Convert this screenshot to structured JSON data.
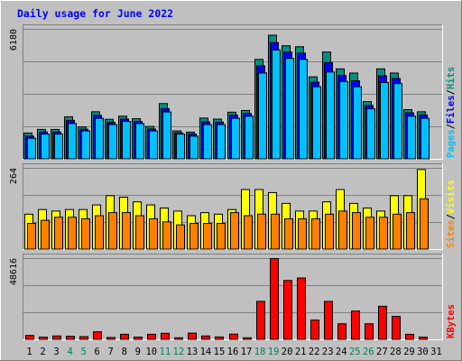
{
  "chart_data": {
    "type": "bar",
    "title": "Daily usage for June 2022",
    "categories": [
      "1",
      "2",
      "3",
      "4",
      "5",
      "6",
      "7",
      "8",
      "9",
      "10",
      "11",
      "12",
      "13",
      "14",
      "15",
      "16",
      "17",
      "18",
      "19",
      "20",
      "21",
      "22",
      "23",
      "24",
      "25",
      "26",
      "27",
      "28",
      "29",
      "30",
      "31"
    ],
    "weekend_days": [
      "4",
      "5",
      "11",
      "12",
      "18",
      "19",
      "25",
      "26"
    ],
    "panels": [
      {
        "name": "hits-files-pages",
        "ymax": 6180,
        "ymax_label": "6180",
        "side_label": [
          "Pages",
          "/",
          "Files",
          "/",
          "Hits"
        ],
        "side_label_colors": [
          "#00c0ff",
          "#000000",
          "#0000ff",
          "#000000",
          "#009080"
        ],
        "series": [
          {
            "name": "Hits",
            "color": "#009080",
            "values": [
              1250,
              1420,
              1420,
              2020,
              1540,
              2260,
              1900,
              2050,
              1930,
              1560,
              2650,
              1350,
              1290,
              1960,
              1910,
              2240,
              2320,
              4750,
              5900,
              5400,
              5350,
              3920,
              5100,
              4300,
              4100,
              2740,
              4300,
              4100,
              2360,
              2260,
              0
            ]
          },
          {
            "name": "Files",
            "color": "#0000ff",
            "values": [
              1100,
              1300,
              1300,
              1850,
              1430,
              2090,
              1760,
              1910,
              1800,
              1440,
              2410,
              1260,
              1200,
              1780,
              1770,
              2100,
              2180,
              4450,
              5550,
              5100,
              5050,
              3670,
              4600,
              3990,
              3730,
              2560,
              3970,
              3840,
              2210,
              2110,
              0
            ]
          },
          {
            "name": "Pages",
            "color": "#00c0ff",
            "values": [
              1000,
              1200,
              1200,
              1700,
              1350,
              1950,
              1650,
              1800,
              1700,
              1350,
              2250,
              1200,
              1100,
              1650,
              1650,
              1950,
              2050,
              4100,
              5200,
              4800,
              4750,
              3450,
              4150,
              3700,
              3450,
              2400,
              3650,
              3600,
              2050,
              1950,
              0
            ]
          }
        ]
      },
      {
        "name": "visits-sites",
        "ymax": 264,
        "ymax_label": "264",
        "side_label": [
          "Sites",
          "/",
          "Visits"
        ],
        "side_label_colors": [
          "#ff8000",
          "#000000",
          "#ffff00"
        ],
        "series": [
          {
            "name": "Visits",
            "color": "#ffff00",
            "values": [
              115,
              130,
              125,
              130,
              130,
              145,
              175,
              170,
              155,
              145,
              135,
              125,
              110,
              120,
              115,
              130,
              195,
              195,
              185,
              150,
              125,
              125,
              155,
              195,
              150,
              135,
              125,
              175,
              175,
              260,
              0
            ]
          },
          {
            "name": "Sites",
            "color": "#ff8000",
            "values": [
              85,
              95,
              105,
              105,
              100,
              110,
              120,
              120,
              110,
              100,
              90,
              80,
              85,
              85,
              85,
              120,
              110,
              115,
              115,
              100,
              100,
              100,
              115,
              125,
              120,
              105,
              105,
              115,
              120,
              165,
              0
            ]
          }
        ]
      },
      {
        "name": "kbytes",
        "ymax": 48616,
        "ymax_label": "48616",
        "side_label": [
          "KBytes"
        ],
        "side_label_colors": [
          "#ff0000"
        ],
        "series": [
          {
            "name": "KBytes",
            "color": "#ff0000",
            "values": [
              2600,
              1600,
              2300,
              2100,
              1900,
              4800,
              1400,
              3300,
              1600,
              3300,
              3900,
              1200,
              4000,
              2300,
              1700,
              3400,
              1200,
              23000,
              48616,
              35500,
              37000,
              11800,
              23000,
              9600,
              17200,
              9600,
              20100,
              14000,
              3300,
              1600,
              0
            ]
          }
        ]
      }
    ]
  }
}
